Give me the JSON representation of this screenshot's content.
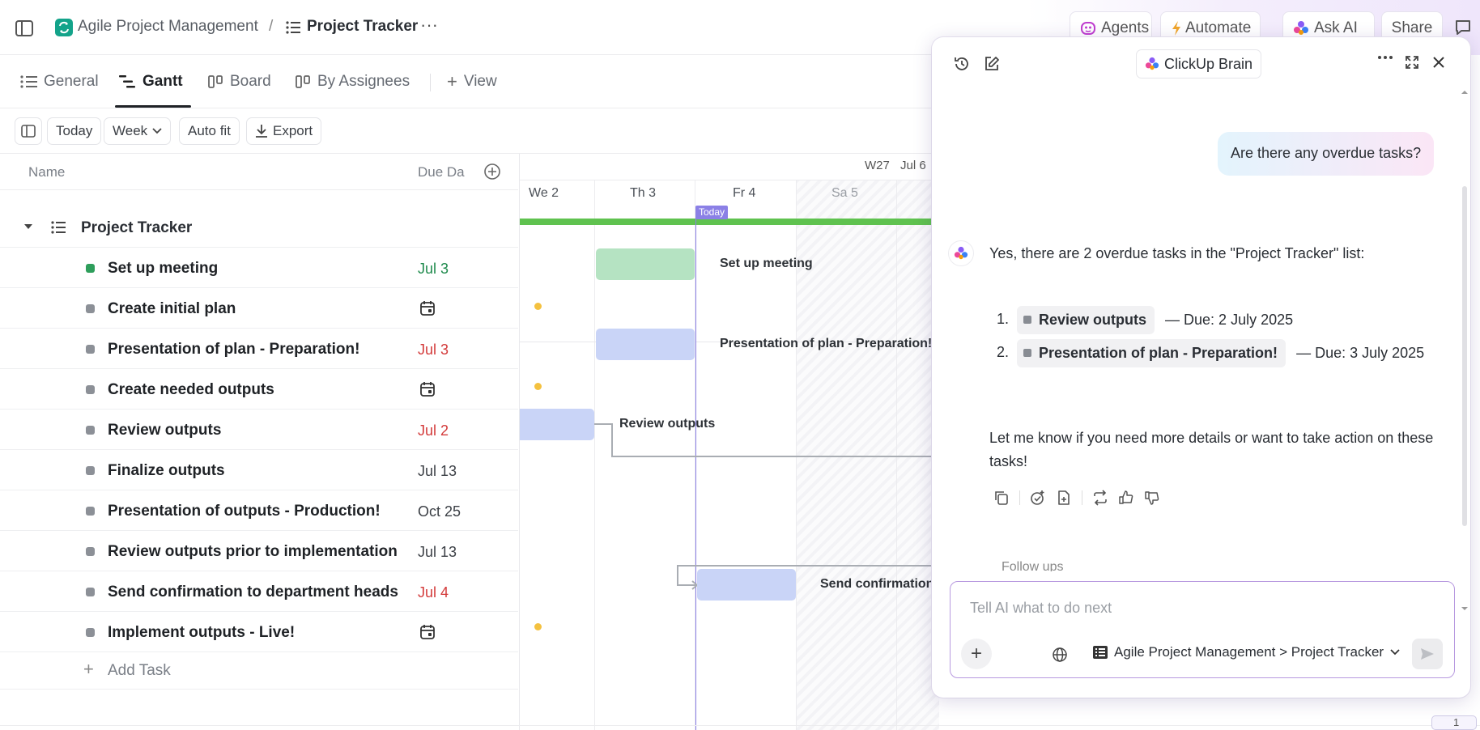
{
  "breadcrumb": {
    "space": "Agile Project Management",
    "separator": "/",
    "list": "Project Tracker",
    "more": "···"
  },
  "header_buttons": {
    "agents": "Agents",
    "automate": "Automate",
    "ask_ai": "Ask AI",
    "share": "Share"
  },
  "tabs": [
    {
      "label": "General"
    },
    {
      "label": "Gantt"
    },
    {
      "label": "Board"
    },
    {
      "label": "By Assignees"
    },
    {
      "label": "View"
    }
  ],
  "toolbar": {
    "today": "Today",
    "week": "Week",
    "auto_fit": "Auto fit",
    "export": "Export"
  },
  "list_header": {
    "name": "Name",
    "due": "Due Da"
  },
  "group": {
    "name": "Project Tracker"
  },
  "tasks": [
    {
      "name": "Set up meeting",
      "due": "Jul 3",
      "due_color": "#1e8a4c",
      "status_color": "#2e9e5b"
    },
    {
      "name": "Create initial plan",
      "due": "",
      "due_color": "#555",
      "status_color": "#8c9097"
    },
    {
      "name": "Presentation of plan - Preparation!",
      "due": "Jul 3",
      "due_color": "#d33a3a",
      "status_color": "#8c9097"
    },
    {
      "name": "Create needed outputs",
      "due": "",
      "due_color": "#555",
      "status_color": "#8c9097"
    },
    {
      "name": "Review outputs",
      "due": "Jul 2",
      "due_color": "#d33a3a",
      "status_color": "#8c9097"
    },
    {
      "name": "Finalize outputs",
      "due": "Jul 13",
      "due_color": "#3b3f45",
      "status_color": "#8c9097"
    },
    {
      "name": "Presentation of outputs - Production!",
      "due": "Oct 25",
      "due_color": "#3b3f45",
      "status_color": "#8c9097"
    },
    {
      "name": "Review outputs prior to implementation",
      "due": "Jul 13",
      "due_color": "#3b3f45",
      "status_color": "#8c9097"
    },
    {
      "name": "Send confirmation to department heads",
      "due": "Jul 4",
      "due_color": "#d33a3a",
      "status_color": "#8c9097"
    },
    {
      "name": "Implement outputs - Live!",
      "due": "",
      "due_color": "#555",
      "status_color": "#8c9097"
    }
  ],
  "add_task": "Add Task",
  "gantt": {
    "week_label": "W27",
    "week_date": "Jul 6",
    "days": [
      "We  2",
      "Th  3",
      "Fr  4",
      "Sa  5"
    ],
    "today_label": "Today",
    "bar_labels": {
      "setup": "Set up meeting",
      "presentation": "Presentation of plan - Preparation!",
      "review": "Review outputs",
      "send": "Send confirmation"
    }
  },
  "ai_panel": {
    "title": "ClickUp Brain",
    "user_message": "Are there any overdue tasks?",
    "reply_intro": "Yes, there are 2 overdue tasks in the \"Project Tracker\" list:",
    "items": [
      {
        "num": "1.",
        "task": "Review outputs",
        "due": "— Due: 2 July 2025"
      },
      {
        "num": "2.",
        "task": "Presentation of plan - Preparation!",
        "due": "— Due: 3 July 2025"
      }
    ],
    "reply_outro": "Let me know if you need more details or want to take action on these tasks!",
    "follow_ups": "Follow ups",
    "input_placeholder": "Tell AI what to do next",
    "context": "Agile Project Management > Project Tracker"
  },
  "footer_badge": "1",
  "colors": {
    "accent": "#7b68ee",
    "today_line": "#8b80e6",
    "progress_green": "#5fc24f",
    "bar_green": "#b5e3c2",
    "bar_blue": "#c9d4f7"
  }
}
